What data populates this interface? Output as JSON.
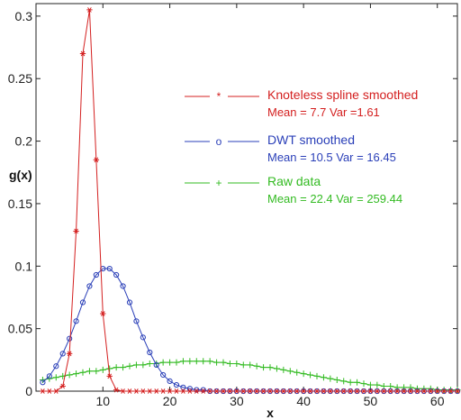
{
  "chart_data": {
    "type": "line",
    "xlabel": "x",
    "ylabel": "g(x)",
    "xlim": [
      0,
      63
    ],
    "ylim": [
      0,
      0.31
    ],
    "x_ticks": [
      10,
      20,
      30,
      40,
      50,
      60
    ],
    "y_ticks": [
      0,
      0.05,
      0.1,
      0.15,
      0.2,
      0.25,
      0.3
    ],
    "y_tick_labels": [
      "0",
      "0.05",
      "0.1",
      "0.15",
      "0.2",
      "0.25",
      "0.3"
    ],
    "x_tick_labels": [
      "10",
      "20",
      "30",
      "40",
      "50",
      "60"
    ],
    "grid": false,
    "legend_position": "right",
    "series": [
      {
        "name": "Knoteless spline smoothed",
        "stats": "Mean = 7.7 Var =1.61",
        "marker": "*",
        "color": "#d42020",
        "x": [
          1,
          2,
          3,
          4,
          5,
          6,
          7,
          8,
          9,
          10,
          11,
          12,
          13,
          14,
          15,
          16,
          17,
          18,
          19,
          20,
          21,
          22,
          23,
          24,
          25,
          26,
          27,
          28,
          29,
          30,
          31,
          32,
          33,
          34,
          35,
          36,
          37,
          38,
          39,
          40,
          41,
          42,
          43,
          44,
          45,
          46,
          47,
          48,
          49,
          50,
          51,
          52,
          53,
          54,
          55,
          56,
          57,
          58,
          59,
          60,
          61,
          62,
          63
        ],
        "y": [
          0,
          0,
          0,
          0.004,
          0.03,
          0.128,
          0.27,
          0.305,
          0.185,
          0.062,
          0.012,
          0.001,
          0,
          0,
          0,
          0,
          0,
          0,
          0,
          0,
          0,
          0,
          0,
          0,
          0,
          0,
          0,
          0,
          0,
          0,
          0,
          0,
          0,
          0,
          0,
          0,
          0,
          0,
          0,
          0,
          0,
          0,
          0,
          0,
          0,
          0,
          0,
          0,
          0,
          0,
          0,
          0,
          0,
          0,
          0,
          0,
          0,
          0,
          0,
          0,
          0,
          0,
          0
        ]
      },
      {
        "name": "DWT smoothed",
        "stats": "Mean = 10.5 Var = 16.45",
        "marker": "o",
        "color": "#2a3fb8",
        "x": [
          1,
          2,
          3,
          4,
          5,
          6,
          7,
          8,
          9,
          10,
          11,
          12,
          13,
          14,
          15,
          16,
          17,
          18,
          19,
          20,
          21,
          22,
          23,
          24,
          25,
          26,
          27,
          28,
          29,
          30,
          31,
          32,
          33,
          34,
          35,
          36,
          37,
          38,
          39,
          40,
          41,
          42,
          43,
          44,
          45,
          46,
          47,
          48,
          49,
          50,
          51,
          52,
          53,
          54,
          55,
          56,
          57,
          58,
          59,
          60,
          61,
          62,
          63
        ],
        "y": [
          0.007,
          0.012,
          0.02,
          0.03,
          0.042,
          0.056,
          0.071,
          0.084,
          0.093,
          0.098,
          0.098,
          0.093,
          0.084,
          0.071,
          0.056,
          0.043,
          0.031,
          0.021,
          0.013,
          0.008,
          0.005,
          0.003,
          0.002,
          0.001,
          0.001,
          0,
          0,
          0,
          0,
          0,
          0,
          0,
          0,
          0,
          0,
          0,
          0,
          0,
          0,
          0,
          0,
          0,
          0,
          0,
          0,
          0,
          0,
          0,
          0,
          0,
          0,
          0,
          0,
          0,
          0,
          0,
          0,
          0,
          0,
          0,
          0,
          0,
          0
        ]
      },
      {
        "name": "Raw data",
        "stats": "Mean = 22.4 Var = 259.44",
        "marker": "+",
        "color": "#33bb22",
        "x": [
          1,
          2,
          3,
          4,
          5,
          6,
          7,
          8,
          9,
          10,
          11,
          12,
          13,
          14,
          15,
          16,
          17,
          18,
          19,
          20,
          21,
          22,
          23,
          24,
          25,
          26,
          27,
          28,
          29,
          30,
          31,
          32,
          33,
          34,
          35,
          36,
          37,
          38,
          39,
          40,
          41,
          42,
          43,
          44,
          45,
          46,
          47,
          48,
          49,
          50,
          51,
          52,
          53,
          54,
          55,
          56,
          57,
          58,
          59,
          60,
          61,
          62,
          63
        ],
        "y": [
          0.009,
          0.01,
          0.011,
          0.012,
          0.013,
          0.014,
          0.015,
          0.016,
          0.016,
          0.017,
          0.018,
          0.019,
          0.019,
          0.02,
          0.021,
          0.021,
          0.022,
          0.022,
          0.023,
          0.023,
          0.023,
          0.024,
          0.024,
          0.024,
          0.024,
          0.024,
          0.023,
          0.023,
          0.022,
          0.022,
          0.021,
          0.021,
          0.02,
          0.019,
          0.019,
          0.018,
          0.017,
          0.016,
          0.015,
          0.014,
          0.013,
          0.012,
          0.011,
          0.01,
          0.009,
          0.008,
          0.007,
          0.007,
          0.006,
          0.005,
          0.005,
          0.004,
          0.004,
          0.003,
          0.003,
          0.003,
          0.002,
          0.002,
          0.002,
          0.001,
          0.001,
          0.001,
          0.001
        ]
      }
    ]
  }
}
